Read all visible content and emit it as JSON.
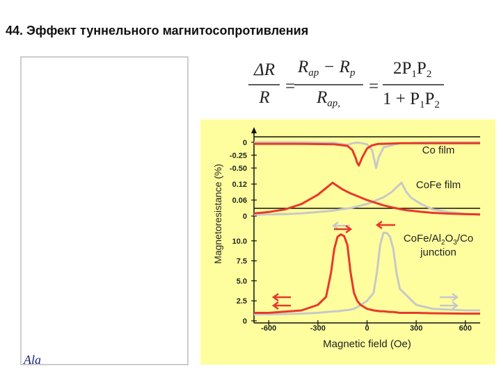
{
  "slide": {
    "title": "44. Эффект туннельного магнитосопротивления",
    "formula": {
      "eq": "=",
      "lhs_num": "ΔR",
      "lhs_den": "R",
      "mid_num": [
        "R",
        "ap",
        " − R",
        "p"
      ],
      "mid_den": [
        "R",
        "ap,"
      ],
      "rhs_num": [
        "2P",
        "1",
        "P",
        "2"
      ],
      "rhs_den": [
        "1 + P",
        "1",
        "P",
        "2"
      ]
    },
    "logo": "Ala"
  },
  "chart_data": [
    {
      "type": "line",
      "annotation": [
        "Co film"
      ],
      "x": [
        -690,
        -400,
        -200,
        -120,
        -90,
        -70,
        -60,
        -50,
        -30,
        0,
        30,
        45,
        55,
        70,
        100,
        200,
        400,
        690
      ],
      "series": [
        {
          "color": "#c8c8c8",
          "values": [
            0,
            0,
            -0.01,
            -0.05,
            -0.02,
            -0.01,
            -0.01,
            -0.01,
            -0.02,
            -0.04,
            -0.15,
            -0.35,
            -0.5,
            -0.3,
            -0.1,
            -0.02,
            0,
            0
          ]
        },
        {
          "color": "#e8382a",
          "values": [
            -0.03,
            -0.03,
            -0.04,
            -0.07,
            -0.15,
            -0.3,
            -0.4,
            -0.45,
            -0.3,
            -0.12,
            -0.06,
            -0.05,
            -0.04,
            -0.03,
            -0.03,
            -0.02,
            -0.02,
            -0.02
          ]
        }
      ],
      "ylim": [
        -0.635,
        0.2
      ],
      "yticks": [
        0,
        -0.25,
        {
          "value": -0.5,
          "label": "-0.50"
        }
      ]
    },
    {
      "type": "line",
      "annotation": [
        "CoFe film"
      ],
      "ylabel": "Magnetoresistance (%)",
      "x": [
        -690,
        -600,
        -500,
        -400,
        -300,
        -250,
        -210,
        -150,
        -100,
        0,
        100,
        150,
        210,
        240,
        270,
        330,
        400,
        500,
        600,
        690
      ],
      "series": [
        {
          "color": "#c8c8c8",
          "values": [
            0.005,
            0.006,
            0.007,
            0.01,
            0.015,
            0.018,
            0.02,
            0.026,
            0.03,
            0.045,
            0.07,
            0.09,
            0.125,
            0.09,
            0.068,
            0.045,
            0.025,
            0.015,
            0.008,
            0.005
          ]
        },
        {
          "color": "#e8382a",
          "values": [
            0.01,
            0.015,
            0.025,
            0.045,
            0.08,
            0.105,
            0.125,
            0.1,
            0.085,
            0.06,
            0.04,
            0.033,
            0.025,
            0.022,
            0.02,
            0.016,
            0.012,
            0.009,
            0.007,
            0.006
          ]
        }
      ],
      "ylim": [
        -0.018,
        0.154
      ],
      "yticks": [
        0.12,
        0.06,
        0
      ]
    },
    {
      "type": "line",
      "annotation": [
        "CoFe/Al",
        "2",
        "O",
        "3",
        "/Co",
        "junction"
      ],
      "xlabel": "Magnetic field (Oe)",
      "x": [
        -690,
        -600,
        -400,
        -300,
        -250,
        -220,
        -200,
        -180,
        -160,
        -140,
        -120,
        -100,
        -80,
        -60,
        -40,
        0,
        40,
        60,
        80,
        100,
        120,
        140,
        160,
        180,
        200,
        300,
        400,
        600,
        690
      ],
      "series": [
        {
          "color": "#c8c8c8",
          "values": [
            0.8,
            0.8,
            0.9,
            1.0,
            1.1,
            1.15,
            1.2,
            1.2,
            1.25,
            1.3,
            1.35,
            1.4,
            1.5,
            1.7,
            2.0,
            2.5,
            3.5,
            6.0,
            9.5,
            11.0,
            11.0,
            10.5,
            9.0,
            6.0,
            4.0,
            2.0,
            1.5,
            1.3,
            1.3
          ]
        },
        {
          "color": "#e8382a",
          "values": [
            1.0,
            1.0,
            1.3,
            2.0,
            3.0,
            6.0,
            9.0,
            10.5,
            10.8,
            10.6,
            9.5,
            6.0,
            3.5,
            2.5,
            2.0,
            1.5,
            1.3,
            1.25,
            1.2,
            1.2,
            1.15,
            1.1,
            1.1,
            1.05,
            1.0,
            1.0,
            0.95,
            0.9,
            0.9
          ]
        }
      ],
      "ylim": [
        -0.26,
        12.5
      ],
      "yticks": [
        {
          "value": 10,
          "label": "10.0"
        },
        7.5,
        {
          "value": 5,
          "label": "5.0"
        },
        2.5,
        0
      ],
      "xlim": [
        -690,
        690
      ],
      "xticks": [
        -600,
        -300,
        0,
        300,
        600
      ]
    }
  ]
}
